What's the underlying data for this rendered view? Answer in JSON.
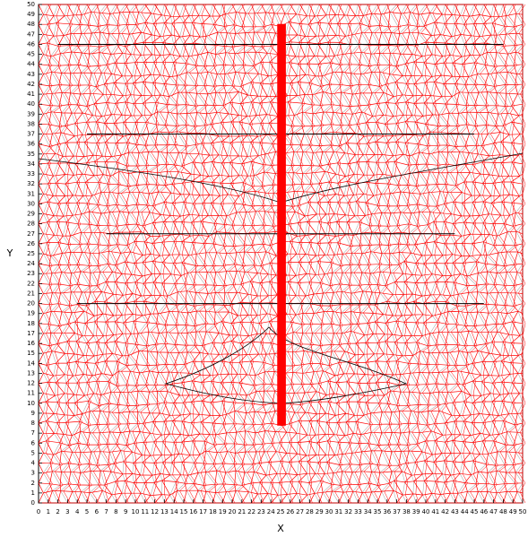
{
  "chart_data": {
    "type": "mesh",
    "xlabel": "X",
    "ylabel": "Y",
    "xlim": [
      0,
      50
    ],
    "ylim": [
      0,
      50
    ],
    "xticks": [
      0,
      1,
      2,
      3,
      4,
      5,
      6,
      7,
      8,
      9,
      10,
      11,
      12,
      13,
      14,
      15,
      16,
      17,
      18,
      19,
      20,
      21,
      22,
      23,
      24,
      25,
      26,
      27,
      28,
      29,
      30,
      31,
      32,
      33,
      34,
      35,
      36,
      37,
      38,
      39,
      40,
      41,
      42,
      43,
      44,
      45,
      46,
      47,
      48,
      49,
      50
    ],
    "yticks": [
      0,
      1,
      2,
      3,
      4,
      5,
      6,
      7,
      8,
      9,
      10,
      11,
      12,
      13,
      14,
      15,
      16,
      17,
      18,
      19,
      20,
      21,
      22,
      23,
      24,
      25,
      26,
      27,
      28,
      29,
      30,
      31,
      32,
      33,
      34,
      35,
      36,
      37,
      38,
      39,
      40,
      41,
      42,
      43,
      44,
      45,
      46,
      47,
      48,
      49,
      50
    ],
    "mesh_color": "#ff0000",
    "boundary_color": "#000000",
    "layer_lines": [
      {
        "y": 46,
        "x": [
          2,
          48
        ]
      },
      {
        "y": 37,
        "x": [
          5,
          45
        ]
      },
      {
        "y": 27,
        "x": [
          7,
          43
        ]
      },
      {
        "y": 20,
        "x": [
          4,
          46
        ]
      }
    ],
    "pile": {
      "x": [
        24.7,
        25.5
      ],
      "y": [
        7.8,
        48
      ]
    }
  }
}
